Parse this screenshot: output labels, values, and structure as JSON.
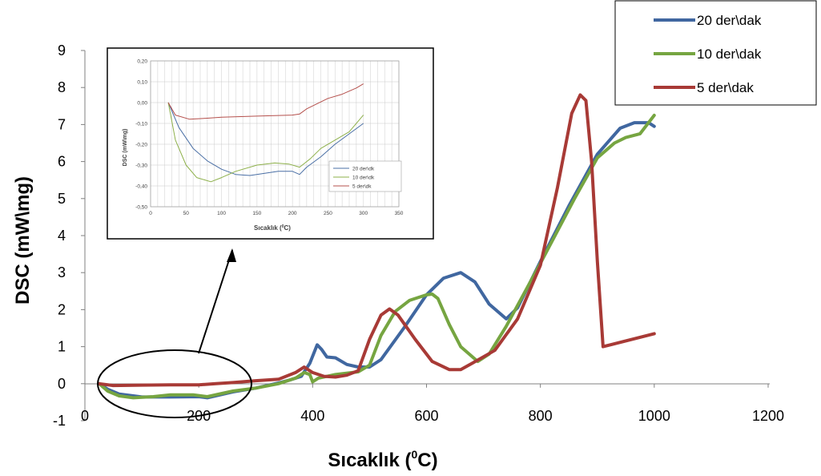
{
  "chart_data": [
    {
      "type": "line",
      "xlabel": "Sıcaklık (",
      "xlabel_sup": "0",
      "xlabel_tail": "C)",
      "ylabel": "DSC (mW\\mg)",
      "xlim": [
        0,
        1200
      ],
      "ylim": [
        -1,
        9
      ],
      "x_ticks": [
        "0",
        "200",
        "400",
        "600",
        "800",
        "1000",
        "1200"
      ],
      "y_ticks": [
        "-1",
        "0",
        "1",
        "2",
        "3",
        "4",
        "5",
        "6",
        "7",
        "8",
        "9"
      ],
      "grid": false,
      "legend_position": "top-right",
      "series": [
        {
          "name": "20 der\\dak",
          "color": "#4067A0",
          "points": [
            [
              25,
              0
            ],
            [
              40,
              -0.15
            ],
            [
              60,
              -0.28
            ],
            [
              100,
              -0.36
            ],
            [
              150,
              -0.36
            ],
            [
              200,
              -0.35
            ],
            [
              215,
              -0.38
            ],
            [
              260,
              -0.22
            ],
            [
              300,
              -0.12
            ],
            [
              340,
              0.02
            ],
            [
              360,
              0.1
            ],
            [
              380,
              0.2
            ],
            [
              395,
              0.55
            ],
            [
              408,
              1.05
            ],
            [
              416,
              0.92
            ],
            [
              425,
              0.72
            ],
            [
              440,
              0.7
            ],
            [
              460,
              0.52
            ],
            [
              480,
              0.45
            ],
            [
              500,
              0.45
            ],
            [
              520,
              0.65
            ],
            [
              560,
              1.5
            ],
            [
              600,
              2.4
            ],
            [
              630,
              2.85
            ],
            [
              660,
              3.0
            ],
            [
              685,
              2.75
            ],
            [
              710,
              2.15
            ],
            [
              740,
              1.75
            ],
            [
              760,
              2.05
            ],
            [
              800,
              3.3
            ],
            [
              850,
              4.8
            ],
            [
              900,
              6.2
            ],
            [
              940,
              6.9
            ],
            [
              965,
              7.05
            ],
            [
              990,
              7.05
            ],
            [
              1000,
              6.95
            ]
          ]
        },
        {
          "name": "10 der\\dak",
          "color": "#76A541",
          "points": [
            [
              25,
              0
            ],
            [
              40,
              -0.2
            ],
            [
              60,
              -0.33
            ],
            [
              85,
              -0.38
            ],
            [
              120,
              -0.35
            ],
            [
              150,
              -0.3
            ],
            [
              190,
              -0.3
            ],
            [
              215,
              -0.35
            ],
            [
              260,
              -0.2
            ],
            [
              300,
              -0.12
            ],
            [
              340,
              0
            ],
            [
              370,
              0.15
            ],
            [
              385,
              0.3
            ],
            [
              395,
              0.25
            ],
            [
              400,
              0.05
            ],
            [
              410,
              0.15
            ],
            [
              440,
              0.25
            ],
            [
              480,
              0.32
            ],
            [
              500,
              0.5
            ],
            [
              520,
              1.3
            ],
            [
              545,
              1.95
            ],
            [
              570,
              2.25
            ],
            [
              600,
              2.4
            ],
            [
              610,
              2.42
            ],
            [
              620,
              2.3
            ],
            [
              640,
              1.6
            ],
            [
              660,
              1.0
            ],
            [
              690,
              0.6
            ],
            [
              710,
              0.8
            ],
            [
              740,
              1.55
            ],
            [
              800,
              3.25
            ],
            [
              860,
              5.0
            ],
            [
              900,
              6.1
            ],
            [
              930,
              6.5
            ],
            [
              950,
              6.65
            ],
            [
              975,
              6.75
            ],
            [
              1000,
              7.25
            ]
          ]
        },
        {
          "name": "5 der\\dak",
          "color": "#A83A36",
          "points": [
            [
              25,
              0
            ],
            [
              50,
              -0.05
            ],
            [
              100,
              -0.04
            ],
            [
              150,
              -0.03
            ],
            [
              200,
              -0.03
            ],
            [
              230,
              0
            ],
            [
              260,
              0.03
            ],
            [
              300,
              0.08
            ],
            [
              340,
              0.12
            ],
            [
              370,
              0.3
            ],
            [
              385,
              0.45
            ],
            [
              400,
              0.3
            ],
            [
              420,
              0.2
            ],
            [
              440,
              0.18
            ],
            [
              460,
              0.23
            ],
            [
              480,
              0.35
            ],
            [
              500,
              1.2
            ],
            [
              520,
              1.85
            ],
            [
              535,
              2.02
            ],
            [
              550,
              1.85
            ],
            [
              580,
              1.2
            ],
            [
              610,
              0.6
            ],
            [
              640,
              0.38
            ],
            [
              660,
              0.38
            ],
            [
              680,
              0.55
            ],
            [
              720,
              0.9
            ],
            [
              760,
              1.75
            ],
            [
              800,
              3.2
            ],
            [
              830,
              5.3
            ],
            [
              855,
              7.3
            ],
            [
              870,
              7.8
            ],
            [
              880,
              7.65
            ],
            [
              890,
              6.0
            ],
            [
              900,
              3.3
            ],
            [
              910,
              1.0
            ],
            [
              1000,
              1.35
            ]
          ]
        }
      ]
    },
    {
      "type": "line",
      "xlabel": "Sıcaklık (",
      "xlabel_sup": "0",
      "xlabel_tail": "C)",
      "ylabel": "DSC (mW\\mg)",
      "xlim": [
        0,
        350
      ],
      "ylim": [
        -0.5,
        0.2
      ],
      "x_ticks": [
        "0",
        "50",
        "100",
        "150",
        "200",
        "250",
        "300",
        "350"
      ],
      "y_ticks": [
        "-0,50",
        "-0,40",
        "-0,30",
        "-0,20",
        "-0,10",
        "0,00",
        "0,10",
        "0,20"
      ],
      "grid": true,
      "legend_position": "bottom-right",
      "series": [
        {
          "name": "20 der\\dk",
          "color": "#4A6FA5",
          "points": [
            [
              25,
              0
            ],
            [
              40,
              -0.12
            ],
            [
              60,
              -0.22
            ],
            [
              80,
              -0.28
            ],
            [
              100,
              -0.32
            ],
            [
              120,
              -0.345
            ],
            [
              140,
              -0.35
            ],
            [
              160,
              -0.34
            ],
            [
              180,
              -0.33
            ],
            [
              200,
              -0.33
            ],
            [
              210,
              -0.345
            ],
            [
              220,
              -0.31
            ],
            [
              240,
              -0.26
            ],
            [
              260,
              -0.2
            ],
            [
              280,
              -0.15
            ],
            [
              300,
              -0.1
            ]
          ]
        },
        {
          "name": "10 der\\dk",
          "color": "#8DB04A",
          "points": [
            [
              25,
              0
            ],
            [
              35,
              -0.18
            ],
            [
              50,
              -0.3
            ],
            [
              65,
              -0.36
            ],
            [
              85,
              -0.38
            ],
            [
              100,
              -0.36
            ],
            [
              120,
              -0.33
            ],
            [
              150,
              -0.3
            ],
            [
              175,
              -0.29
            ],
            [
              195,
              -0.295
            ],
            [
              210,
              -0.31
            ],
            [
              225,
              -0.27
            ],
            [
              240,
              -0.22
            ],
            [
              260,
              -0.18
            ],
            [
              280,
              -0.14
            ],
            [
              300,
              -0.06
            ]
          ]
        },
        {
          "name": "5 der\\dk",
          "color": "#B5504C",
          "points": [
            [
              25,
              0
            ],
            [
              35,
              -0.06
            ],
            [
              55,
              -0.08
            ],
            [
              80,
              -0.075
            ],
            [
              100,
              -0.07
            ],
            [
              150,
              -0.065
            ],
            [
              200,
              -0.06
            ],
            [
              210,
              -0.055
            ],
            [
              220,
              -0.03
            ],
            [
              250,
              0.02
            ],
            [
              270,
              0.04
            ],
            [
              290,
              0.07
            ],
            [
              300,
              0.09
            ]
          ]
        }
      ]
    }
  ]
}
